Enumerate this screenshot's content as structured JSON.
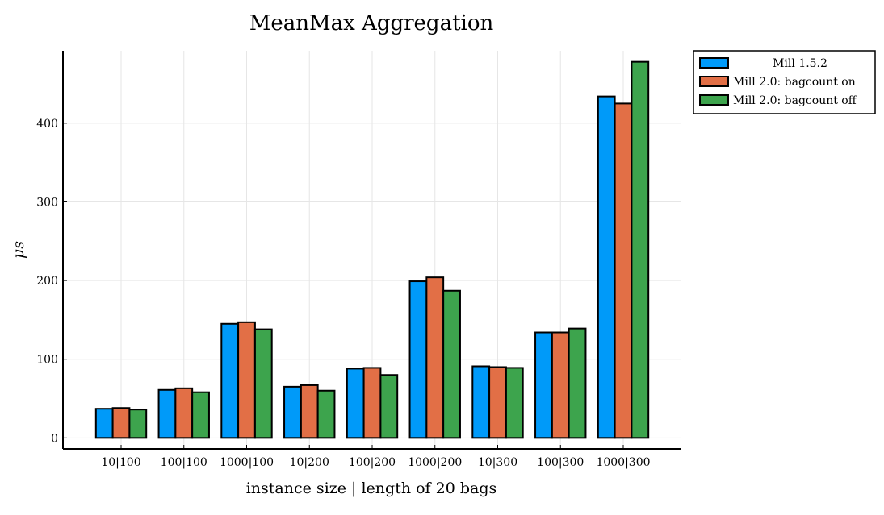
{
  "chart_data": {
    "type": "bar",
    "title": "MeanMax Aggregation",
    "xlabel": "instance size | length of 20 bags",
    "ylabel": "μs",
    "categories": [
      "10|100",
      "100|100",
      "1000|100",
      "10|200",
      "100|200",
      "1000|200",
      "10|300",
      "100|300",
      "1000|300"
    ],
    "series": [
      {
        "name": "Mill 1.5.2",
        "color": "#009af9",
        "values": [
          37,
          61,
          145,
          65,
          88,
          199,
          91,
          134,
          434
        ]
      },
      {
        "name": "Mill 2.0: bagcount on",
        "color": "#e26f46",
        "values": [
          38,
          63,
          147,
          67,
          89,
          204,
          90,
          134,
          425
        ]
      },
      {
        "name": "Mill 2.0: bagcount off",
        "color": "#3da44d",
        "values": [
          36,
          58,
          138,
          60,
          80,
          187,
          89,
          139,
          478
        ]
      }
    ],
    "yticks": [
      0,
      100,
      200,
      300,
      400
    ],
    "ylim": [
      -14,
      492
    ],
    "grid": true,
    "legend_position": "outer-top-right"
  }
}
